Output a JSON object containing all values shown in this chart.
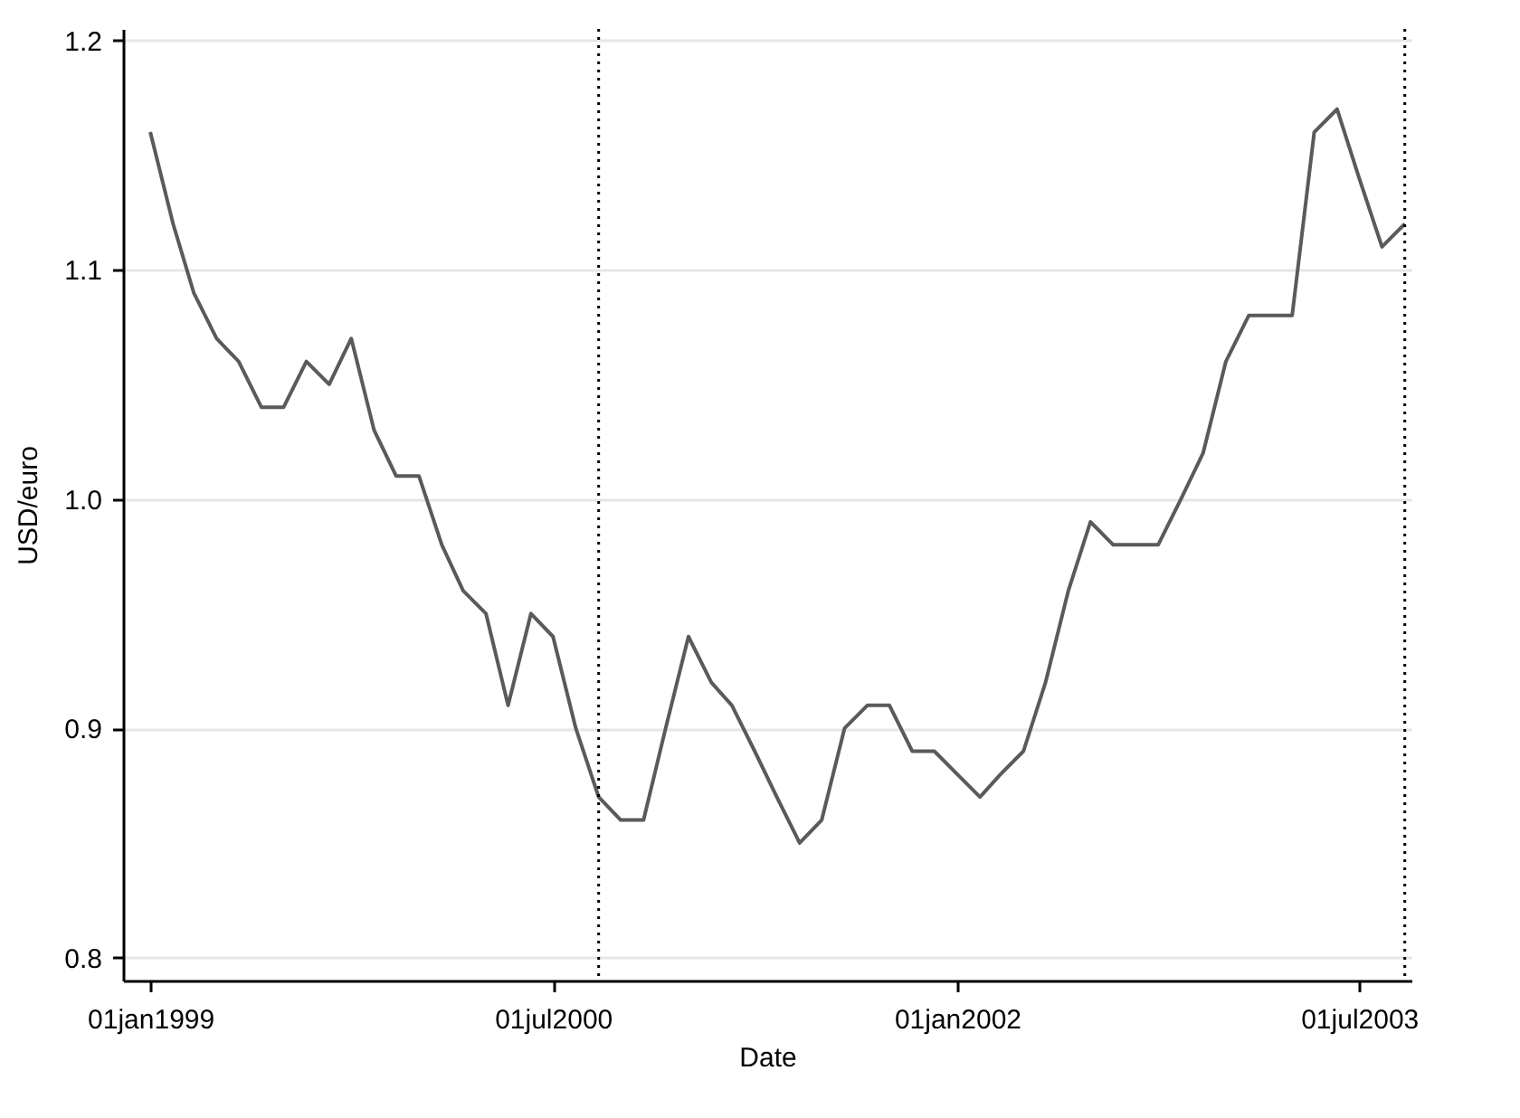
{
  "chart_data": {
    "type": "line",
    "xlabel": "Date",
    "ylabel": "USD/euro",
    "x": [
      "1999-01",
      "1999-02",
      "1999-03",
      "1999-04",
      "1999-05",
      "1999-06",
      "1999-07",
      "1999-08",
      "1999-09",
      "1999-10",
      "1999-11",
      "1999-12",
      "2000-01",
      "2000-02",
      "2000-03",
      "2000-04",
      "2000-05",
      "2000-06",
      "2000-07",
      "2000-08",
      "2000-09",
      "2000-10",
      "2000-11",
      "2000-12",
      "2001-01",
      "2001-02",
      "2001-03",
      "2001-04",
      "2001-05",
      "2001-06",
      "2001-07",
      "2001-08",
      "2001-09",
      "2001-10",
      "2001-11",
      "2001-12",
      "2002-01",
      "2002-02",
      "2002-03",
      "2002-04",
      "2002-05",
      "2002-06",
      "2002-07",
      "2002-08",
      "2002-09",
      "2002-10",
      "2002-11",
      "2002-12",
      "2003-01",
      "2003-02",
      "2003-03",
      "2003-04",
      "2003-05",
      "2003-06",
      "2003-07",
      "2003-08",
      "2003-09"
    ],
    "series": [
      {
        "color": "#5a5a5a",
        "values": [
          1.16,
          1.12,
          1.09,
          1.07,
          1.06,
          1.04,
          1.04,
          1.06,
          1.05,
          1.07,
          1.03,
          1.01,
          1.01,
          0.98,
          0.96,
          0.95,
          0.91,
          0.95,
          0.94,
          0.9,
          0.87,
          0.86,
          0.86,
          0.9,
          0.94,
          0.92,
          0.91,
          0.89,
          0.87,
          0.85,
          0.86,
          0.9,
          0.91,
          0.91,
          0.89,
          0.89,
          0.88,
          0.87,
          0.88,
          0.89,
          0.92,
          0.96,
          0.99,
          0.98,
          0.98,
          0.98,
          1.0,
          1.02,
          1.06,
          1.08,
          1.08,
          1.08,
          1.16,
          1.17,
          1.14,
          1.11,
          1.12
        ]
      }
    ],
    "xlim": [
      "1998-11-25",
      "2003-09-10"
    ],
    "xticks": [
      {
        "value": "1999-01-01",
        "label": "01jan1999"
      },
      {
        "value": "2000-07-01",
        "label": "01jul2000"
      },
      {
        "value": "2002-01-01",
        "label": "01jan2002"
      },
      {
        "value": "2003-07-01",
        "label": "01jul2003"
      }
    ],
    "ylim": [
      0.79,
      1.205
    ],
    "yticks": [
      0.8,
      0.9,
      {
        "value": 1,
        "label": "1.0"
      },
      1.1,
      1.2
    ],
    "grid": "y",
    "line_style": "solid",
    "ref_lines": [
      {
        "axis": "x",
        "value": "2000-09-01",
        "color": "#000000",
        "line_style": "dotted"
      },
      {
        "axis": "x",
        "value": "2003-09-01",
        "color": "#000000",
        "line_style": "dotted"
      }
    ]
  }
}
